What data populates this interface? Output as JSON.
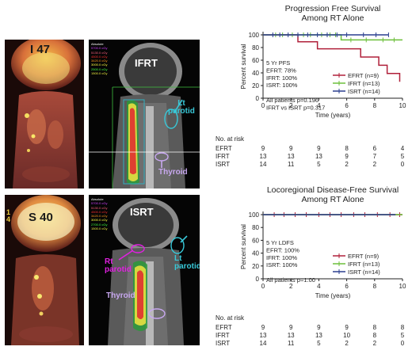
{
  "images": {
    "pet_top": {
      "label": "I 47"
    },
    "ct_top": {
      "label": "IFRT",
      "annot_parotid": "Lt\nparotid",
      "annot_thyroid": "Thyroid",
      "dose_legend": [
        "Absolute",
        "5700.0 cGy",
        "5130.0 cGy",
        "4500.0 cGy",
        "3420.0 cGy",
        "3000.0 cGy",
        "2500.0 cGy",
        "1500.0 cGy"
      ]
    },
    "pet_bottom": {
      "label": "S 40",
      "side_text": "1\n4"
    },
    "ct_bottom": {
      "label": "ISRT",
      "annot_rt": "Rt\nparotid",
      "annot_lt": "Lt\nparotid",
      "annot_thyroid": "Thyroid",
      "dose_legend": [
        "Absolute",
        "5700.0 cGy",
        "5130.0 cGy",
        "4500.0 cGy",
        "3420.0 cGy",
        "3000.0 cGy",
        "2700.0 cGy",
        "1500.0 cGy"
      ]
    }
  },
  "colors": {
    "efrt": "#b0203a",
    "ifrt": "#6cbf3a",
    "isrt": "#2a3f8f",
    "cyan_annot": "#38c8d8",
    "magenta_annot": "#e020e0",
    "thyroid_annot": "#c8a8f0"
  },
  "chart_data": [
    {
      "type": "line",
      "title": "Progression Free Survival\nAmong RT Alone",
      "xlabel": "Time (years)",
      "ylabel": "Percent survival",
      "xlim": [
        0,
        10
      ],
      "ylim": [
        0,
        100
      ],
      "xticks": [
        0,
        2,
        4,
        6,
        8,
        10
      ],
      "yticks": [
        0,
        20,
        40,
        60,
        80,
        100
      ],
      "annotation": [
        "5 Yr PFS",
        "EFRT: 78%",
        "IFRT: 100%",
        "ISRT: 100%",
        "",
        "All patients p=0.196",
        "IFRT vs ISRT p=0.317"
      ],
      "legend_position": "bottom-right",
      "series": [
        {
          "name": "EFRT",
          "n_label": "(n=9)",
          "steps": [
            [
              0,
              100
            ],
            [
              2.5,
              100
            ],
            [
              2.5,
              89
            ],
            [
              3.9,
              89
            ],
            [
              3.9,
              78
            ],
            [
              7.0,
              78
            ],
            [
              7.0,
              65
            ],
            [
              8.3,
              65
            ],
            [
              8.3,
              52
            ],
            [
              8.9,
              52
            ],
            [
              8.9,
              39
            ],
            [
              9.8,
              39
            ],
            [
              9.8,
              26
            ]
          ],
          "censors": []
        },
        {
          "name": "IFRT",
          "n_label": "(n=13)",
          "steps": [
            [
              0,
              100
            ],
            [
              5.6,
              100
            ],
            [
              5.6,
              92
            ],
            [
              10,
              92
            ]
          ],
          "censors": [
            0.9,
            1.4,
            2.1,
            2.9,
            3.4,
            4.2,
            4.8,
            5.2,
            6.3,
            7.4,
            8.6,
            9.4
          ]
        },
        {
          "name": "ISRT",
          "n_label": "(n=14)",
          "steps": [
            [
              0,
              100
            ],
            [
              9.0,
              100
            ]
          ],
          "censors": [
            0.7,
            1.2,
            1.8,
            2.5,
            3.2,
            3.9,
            4.6,
            5.3,
            6.0,
            7.2,
            8.1,
            9.0
          ]
        }
      ],
      "risk_table": {
        "header": "No. at risk",
        "rows": [
          {
            "label": "EFRT",
            "values": [
              "9",
              "9",
              "9",
              "8",
              "6",
              "4"
            ]
          },
          {
            "label": "IFRT",
            "values": [
              "13",
              "13",
              "13",
              "9",
              "7",
              "5"
            ]
          },
          {
            "label": "ISRT",
            "values": [
              "14",
              "11",
              "5",
              "2",
              "2",
              "0"
            ]
          }
        ]
      }
    },
    {
      "type": "line",
      "title": "Locoregional Disease-Free Survival\nAmong RT Alone",
      "xlabel": "Time (years)",
      "ylabel": "Percent survival",
      "xlim": [
        0,
        10
      ],
      "ylim": [
        0,
        100
      ],
      "xticks": [
        0,
        2,
        4,
        6,
        8,
        10
      ],
      "yticks": [
        0,
        20,
        40,
        60,
        80,
        100
      ],
      "annotation": [
        "5 Yr LDFS",
        "EFRT: 100%",
        "IFRT: 100%",
        "ISRT: 100%",
        "",
        "All patients p=1.00"
      ],
      "legend_position": "bottom-right",
      "series": [
        {
          "name": "EFRT",
          "n_label": "(n=9)",
          "steps": [
            [
              0,
              100
            ],
            [
              10,
              100
            ]
          ],
          "censors": [
            0.8,
            1.5,
            2.3,
            3.1,
            4.0,
            4.8,
            5.6,
            6.5,
            7.3,
            8.2,
            9.1,
            9.8
          ]
        },
        {
          "name": "IFRT",
          "n_label": "(n=13)",
          "steps": [
            [
              0,
              100
            ],
            [
              10,
              100
            ]
          ],
          "censors": []
        },
        {
          "name": "ISRT",
          "n_label": "(n=14)",
          "steps": [
            [
              0,
              100
            ],
            [
              9.5,
              100
            ]
          ],
          "censors": []
        }
      ],
      "risk_table": {
        "header": "No. at risk",
        "rows": [
          {
            "label": "EFRT",
            "values": [
              "9",
              "9",
              "9",
              "9",
              "8",
              "8"
            ]
          },
          {
            "label": "IFRT",
            "values": [
              "13",
              "13",
              "13",
              "10",
              "8",
              "5"
            ]
          },
          {
            "label": "ISRT",
            "values": [
              "14",
              "11",
              "5",
              "2",
              "2",
              "0"
            ]
          }
        ]
      }
    }
  ]
}
